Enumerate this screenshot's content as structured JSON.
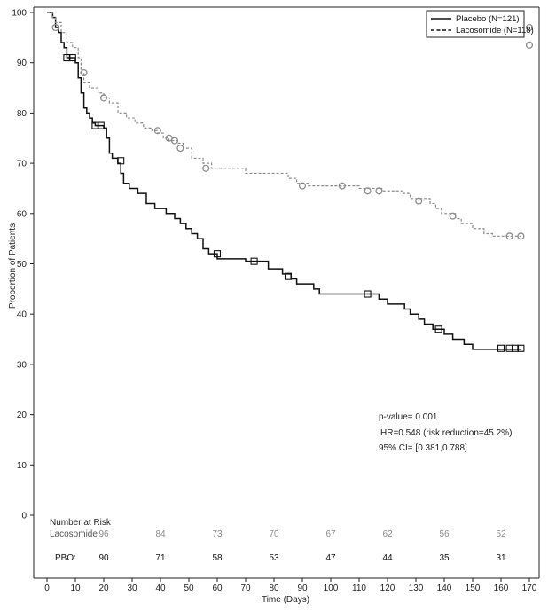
{
  "chart_data": {
    "type": "line",
    "subtype": "kaplan-meier",
    "xlabel": "Time (Days)",
    "ylabel": "Proportion of Patients",
    "xlim": [
      0,
      170
    ],
    "ylim": [
      0,
      100
    ],
    "xticks": [
      0,
      10,
      20,
      30,
      40,
      50,
      60,
      70,
      80,
      90,
      100,
      110,
      120,
      130,
      140,
      150,
      160,
      170
    ],
    "yticks": [
      0,
      10,
      20,
      30,
      40,
      50,
      60,
      70,
      80,
      90,
      100
    ],
    "grid": false,
    "legend_position": "top-right",
    "series": [
      {
        "name": "Placebo (N=121)",
        "style": "solid",
        "color": "#111111",
        "steps": [
          [
            0,
            100
          ],
          [
            2,
            99
          ],
          [
            3,
            97
          ],
          [
            4,
            96
          ],
          [
            5,
            94
          ],
          [
            6,
            93
          ],
          [
            7,
            91
          ],
          [
            10,
            90
          ],
          [
            11,
            87
          ],
          [
            12,
            84
          ],
          [
            13,
            81
          ],
          [
            14,
            80
          ],
          [
            15,
            79
          ],
          [
            16,
            78
          ],
          [
            17,
            77.5
          ],
          [
            20,
            77
          ],
          [
            21,
            75
          ],
          [
            22,
            72
          ],
          [
            23,
            71
          ],
          [
            25,
            70
          ],
          [
            26,
            68
          ],
          [
            27,
            66
          ],
          [
            29,
            65
          ],
          [
            32,
            64
          ],
          [
            35,
            62
          ],
          [
            38,
            61
          ],
          [
            42,
            60
          ],
          [
            45,
            59
          ],
          [
            47,
            58
          ],
          [
            49,
            57
          ],
          [
            51,
            56
          ],
          [
            53,
            55
          ],
          [
            55,
            53
          ],
          [
            57,
            52
          ],
          [
            60,
            51
          ],
          [
            68,
            51
          ],
          [
            70,
            50.5
          ],
          [
            78,
            49
          ],
          [
            83,
            48
          ],
          [
            86,
            47
          ],
          [
            88,
            46
          ],
          [
            94,
            45
          ],
          [
            96,
            44
          ],
          [
            113,
            44
          ],
          [
            117,
            43
          ],
          [
            120,
            42
          ],
          [
            126,
            41
          ],
          [
            128,
            40
          ],
          [
            131,
            39
          ],
          [
            133,
            38
          ],
          [
            136,
            37
          ],
          [
            140,
            36
          ],
          [
            143,
            35
          ],
          [
            147,
            34
          ],
          [
            150,
            33
          ],
          [
            167,
            33
          ]
        ],
        "censored": [
          [
            7,
            91
          ],
          [
            9,
            91
          ],
          [
            17,
            77.5
          ],
          [
            19,
            77.5
          ],
          [
            26,
            70.5
          ],
          [
            60,
            52
          ],
          [
            73,
            50.5
          ],
          [
            85,
            47.5
          ],
          [
            113,
            44
          ],
          [
            138,
            37
          ],
          [
            160,
            33.2
          ],
          [
            163,
            33.2
          ],
          [
            165,
            33.2
          ],
          [
            167,
            33.2
          ]
        ]
      },
      {
        "name": "Lacosomide (N=118)",
        "style": "dashed",
        "color": "#8c8c8c",
        "steps": [
          [
            0,
            100
          ],
          [
            2,
            99
          ],
          [
            3,
            98
          ],
          [
            5,
            96
          ],
          [
            7,
            94
          ],
          [
            9,
            93
          ],
          [
            11,
            91
          ],
          [
            12,
            88
          ],
          [
            13,
            86
          ],
          [
            15,
            85
          ],
          [
            18,
            84
          ],
          [
            20,
            83
          ],
          [
            22,
            82
          ],
          [
            25,
            80
          ],
          [
            28,
            79
          ],
          [
            31,
            78
          ],
          [
            34,
            77
          ],
          [
            37,
            76.5
          ],
          [
            39,
            76
          ],
          [
            41,
            75
          ],
          [
            43,
            74.5
          ],
          [
            46,
            74
          ],
          [
            48,
            73
          ],
          [
            51,
            71
          ],
          [
            55,
            70
          ],
          [
            58,
            69
          ],
          [
            66,
            69
          ],
          [
            70,
            68
          ],
          [
            85,
            67
          ],
          [
            88,
            66
          ],
          [
            92,
            65.5
          ],
          [
            108,
            65.5
          ],
          [
            110,
            65
          ],
          [
            118,
            64.5
          ],
          [
            125,
            64
          ],
          [
            128,
            63
          ],
          [
            135,
            62
          ],
          [
            137,
            61
          ],
          [
            139,
            60
          ],
          [
            144,
            59
          ],
          [
            146,
            58
          ],
          [
            150,
            57
          ],
          [
            154,
            56
          ],
          [
            157,
            55.5
          ],
          [
            167,
            55.5
          ]
        ],
        "censored": [
          [
            3,
            97
          ],
          [
            13,
            88
          ],
          [
            20,
            83
          ],
          [
            39,
            76.5
          ],
          [
            43,
            75
          ],
          [
            45,
            74.5
          ],
          [
            47,
            73
          ],
          [
            56,
            69
          ],
          [
            90,
            65.5
          ],
          [
            104,
            65.5
          ],
          [
            113,
            64.5
          ],
          [
            117,
            64.5
          ],
          [
            131,
            62.5
          ],
          [
            143,
            59.5
          ],
          [
            163,
            55.5
          ],
          [
            167,
            55.5
          ],
          [
            170,
            97
          ],
          [
            170,
            93.5
          ]
        ]
      }
    ],
    "legend": [
      {
        "label": "Placebo (N=121)",
        "style": "solid"
      },
      {
        "label": "Lacosomide (N=118)",
        "style": "dashed"
      }
    ],
    "annotations": {
      "pvalue": "p-value= 0.001",
      "hr": "HR=0.548 (risk reduction=45.2%)",
      "ci": "95% CI= [0.381,0.788]"
    },
    "number_at_risk": {
      "title": "Number at Risk",
      "times": [
        20,
        40,
        60,
        80,
        100,
        120,
        140,
        160
      ],
      "rows": [
        {
          "label": "Lacosomide",
          "values": [
            "96",
            "84",
            "73",
            "70",
            "67",
            "62",
            "56",
            "52"
          ],
          "color": "#8c8c8c"
        },
        {
          "label": "PBO:",
          "values": [
            "90",
            "71",
            "58",
            "53",
            "47",
            "44",
            "35",
            "31"
          ],
          "color": "#111111"
        }
      ]
    }
  }
}
